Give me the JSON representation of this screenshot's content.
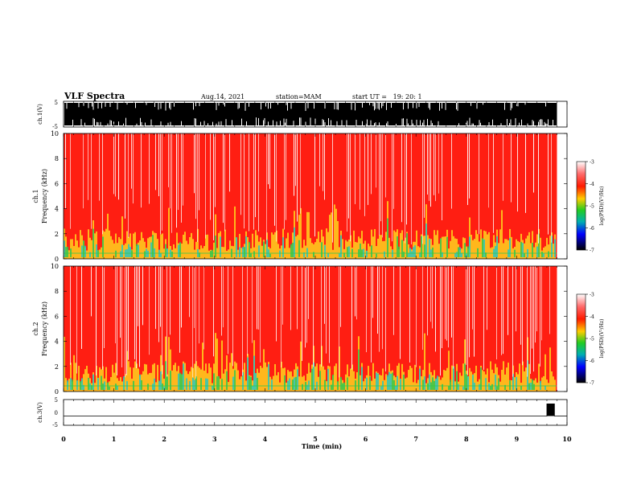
{
  "header": {
    "title": "VLF Spectra",
    "date": "Aug.14, 2021",
    "station": "station=MAM",
    "start_ut": "start UT =   19: 20: 1"
  },
  "chart_data": [
    {
      "type": "line",
      "panel": "ch1-waveform",
      "ylabel": "ch.1(V)",
      "yticks": [
        "5",
        "-5"
      ],
      "ylim": [
        -5,
        5
      ],
      "xlim": [
        0,
        10
      ],
      "note_visible": "dense black waveform filling nearly the full +/-5 V range up to ~9.8 min"
    },
    {
      "type": "heatmap",
      "panel": "ch1-spectrogram",
      "ylabel_top": "ch.1",
      "ylabel": "Frequency (kHz)",
      "yticks": [
        "0",
        "2",
        "4",
        "6",
        "8",
        "10"
      ],
      "ylim": [
        0,
        10
      ],
      "xlim": [
        0,
        10
      ],
      "data_end_min": 9.8,
      "colorbar": {
        "label": "log(PSD)(V²/Hz)",
        "ticks": [
          "-3",
          "-4",
          "-5",
          "-6",
          "-7"
        ],
        "range": [
          -7,
          -3
        ]
      }
    },
    {
      "type": "heatmap",
      "panel": "ch2-spectrogram",
      "ylabel_top": "ch.2",
      "ylabel": "Frequency (kHz)",
      "yticks": [
        "0",
        "2",
        "4",
        "6",
        "8",
        "10"
      ],
      "ylim": [
        0,
        10
      ],
      "xlim": [
        0,
        10
      ],
      "data_end_min": 9.8,
      "colorbar": {
        "label": "log(PSD)(V²/Hz)",
        "ticks": [
          "-3",
          "-4",
          "-5",
          "-6",
          "-7"
        ],
        "range": [
          -7,
          -3
        ]
      }
    },
    {
      "type": "line",
      "panel": "ch3-waveform",
      "ylabel": "ch.3(V)",
      "yticks": [
        "5",
        "0",
        "-5"
      ],
      "ylim": [
        -5,
        5
      ],
      "xlim": [
        0,
        10
      ],
      "x": [
        0,
        9.55,
        9.6,
        9.6,
        9.75,
        9.75,
        9.8
      ],
      "y": [
        -1.4,
        -1.4,
        -1.4,
        3.3,
        3.3,
        -1.4,
        -1.4
      ]
    }
  ],
  "xaxis": {
    "label": "Time (min)",
    "ticks": [
      "0",
      "1",
      "2",
      "3",
      "4",
      "5",
      "6",
      "7",
      "8",
      "9",
      "10"
    ]
  },
  "colors": {
    "spectro_bg": "#ff1e12",
    "spectro_high": "#ffffff",
    "low_band": "#ffd21e",
    "burst_green": "#28c850",
    "burst_cyan": "#1ec8c8"
  }
}
